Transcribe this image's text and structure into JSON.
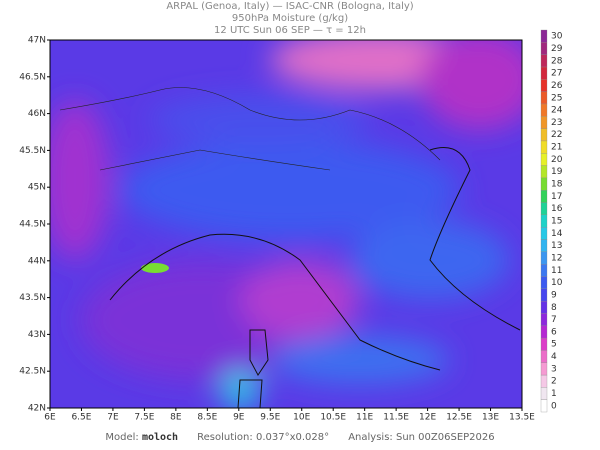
{
  "header": {
    "line1": "ARPAL (Genoa, Italy)  —  ISAC-CNR (Bologna, Italy)",
    "line2": "950hPa Moisture (g/kg)",
    "line3": "12 UTC Sun 06 SEP  —  τ = 12h"
  },
  "map": {
    "lon_ticks": [
      "6E",
      "6.5E",
      "7E",
      "7.5E",
      "8E",
      "8.5E",
      "9E",
      "9.5E",
      "10E",
      "10.5E",
      "11E",
      "11.5E",
      "12E",
      "12.5E",
      "13E",
      "13.5E"
    ],
    "lat_ticks": [
      "42N",
      "42.5N",
      "43N",
      "43.5N",
      "44N",
      "44.5N",
      "45N",
      "45.5N",
      "46N",
      "46.5N",
      "47N"
    ]
  },
  "colorbar": {
    "levels": [
      0,
      1,
      2,
      3,
      4,
      5,
      6,
      7,
      8,
      9,
      10,
      11,
      12,
      13,
      14,
      15,
      16,
      17,
      18,
      19,
      20,
      21,
      22,
      23,
      24,
      25,
      26,
      27,
      28,
      29,
      30
    ],
    "colors": [
      "#ffffff",
      "#f0e6f0",
      "#f5c8e6",
      "#f59ad2",
      "#eb6ec8",
      "#dc3cc8",
      "#b428d2",
      "#8c28dc",
      "#6432e6",
      "#4646ee",
      "#3c5af0",
      "#3c78f0",
      "#3c96f0",
      "#32b4f0",
      "#28c8e6",
      "#1ed2c8",
      "#1ed296",
      "#32d25a",
      "#78dc32",
      "#b4e628",
      "#e6f028",
      "#f0dc28",
      "#f0be28",
      "#f09628",
      "#f07828",
      "#eb5a28",
      "#e63228",
      "#d2283c",
      "#be285a",
      "#a0287d",
      "#8c2896"
    ]
  },
  "footer": {
    "model_label": "Model:",
    "model": "moloch",
    "resolution_label": "Resolution:",
    "resolution": "0.037°x0.028°",
    "analysis_label": "Analysis:",
    "analysis": "Sun 00Z06SEP2026"
  }
}
